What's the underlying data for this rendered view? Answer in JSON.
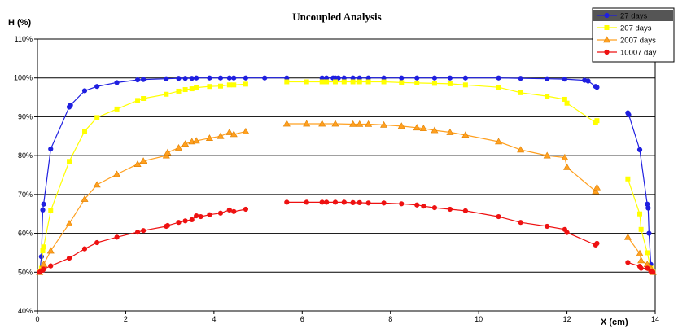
{
  "chart_data": {
    "type": "line",
    "title": "Uncoupled Analysis",
    "ylabel": "H (%)",
    "xlabel": "X (cm)",
    "xlim": [
      0,
      14
    ],
    "ylim": [
      40,
      110
    ],
    "x_ticks": [
      0,
      2,
      4,
      6,
      8,
      10,
      12,
      14
    ],
    "y_ticks": [
      40,
      50,
      60,
      70,
      80,
      90,
      100,
      110
    ],
    "y_tick_labels": [
      "40%",
      "50%",
      "60%",
      "70%",
      "80%",
      "90%",
      "100%",
      "110%"
    ],
    "grid": "horizontal",
    "legend_position": "top-right",
    "series": [
      {
        "name": "27 days",
        "color": "#1f1fe0",
        "marker": "circle",
        "segments": [
          [
            [
              0.05,
              50
            ],
            [
              0.09,
              54
            ],
            [
              0.12,
              66
            ],
            [
              0.14,
              67.5
            ],
            [
              0.3,
              81.7
            ],
            [
              0.72,
              92.5
            ],
            [
              0.75,
              93
            ],
            [
              1.07,
              96.7
            ],
            [
              1.35,
              97.8
            ],
            [
              1.8,
              98.8
            ],
            [
              2.27,
              99.5
            ],
            [
              2.4,
              99.6
            ],
            [
              2.92,
              99.8
            ],
            [
              3.2,
              99.9
            ],
            [
              3.35,
              99.9
            ],
            [
              3.5,
              99.9
            ],
            [
              3.6,
              100
            ],
            [
              3.9,
              100
            ],
            [
              4.15,
              100
            ],
            [
              4.35,
              100
            ],
            [
              4.45,
              100
            ],
            [
              4.72,
              100
            ],
            [
              5.15,
              100
            ],
            [
              5.65,
              100
            ]
          ],
          [
            [
              6.45,
              100
            ],
            [
              6.55,
              100
            ],
            [
              6.7,
              100
            ],
            [
              6.75,
              100
            ],
            [
              6.82,
              100
            ],
            [
              6.95,
              100
            ],
            [
              7.15,
              100
            ],
            [
              7.3,
              100
            ],
            [
              7.5,
              100
            ],
            [
              7.85,
              100
            ],
            [
              8.25,
              100
            ],
            [
              8.6,
              100
            ],
            [
              9.0,
              100
            ],
            [
              9.35,
              100
            ],
            [
              9.7,
              100
            ],
            [
              10.45,
              100
            ],
            [
              10.95,
              99.9
            ],
            [
              11.55,
              99.8
            ],
            [
              11.95,
              99.7
            ],
            [
              12.4,
              99.4
            ],
            [
              12.48,
              99.2
            ],
            [
              12.65,
              97.8
            ],
            [
              12.68,
              97.6
            ]
          ],
          [
            [
              13.38,
              91
            ],
            [
              13.4,
              90.5
            ],
            [
              13.65,
              81.5
            ],
            [
              13.82,
              67.5
            ],
            [
              13.84,
              66.5
            ],
            [
              13.86,
              60
            ],
            [
              13.9,
              52
            ],
            [
              13.95,
              50
            ]
          ]
        ]
      },
      {
        "name": "207 days",
        "color": "#ffff00",
        "marker": "square",
        "segments": [
          [
            [
              0.05,
              50
            ],
            [
              0.09,
              51
            ],
            [
              0.12,
              55.5
            ],
            [
              0.14,
              56.5
            ],
            [
              0.3,
              65.8
            ],
            [
              0.72,
              78.5
            ],
            [
              1.07,
              86.3
            ],
            [
              1.35,
              89.8
            ],
            [
              1.8,
              92
            ],
            [
              2.27,
              94.2
            ],
            [
              2.4,
              94.7
            ],
            [
              2.92,
              95.8
            ],
            [
              3.2,
              96.6
            ],
            [
              3.35,
              97
            ],
            [
              3.5,
              97.2
            ],
            [
              3.6,
              97.5
            ],
            [
              3.9,
              97.8
            ],
            [
              4.15,
              97.9
            ],
            [
              4.35,
              98.2
            ],
            [
              4.45,
              98.2
            ],
            [
              4.72,
              98.4
            ]
          ],
          [
            [
              5.65,
              99
            ],
            [
              6.1,
              99
            ],
            [
              6.45,
              99
            ],
            [
              6.55,
              99
            ],
            [
              6.75,
              99
            ],
            [
              6.95,
              99
            ],
            [
              7.15,
              99
            ],
            [
              7.3,
              99
            ],
            [
              7.5,
              99
            ],
            [
              7.85,
              99
            ],
            [
              8.25,
              98.8
            ],
            [
              8.6,
              98.7
            ],
            [
              9.0,
              98.6
            ],
            [
              9.35,
              98.5
            ],
            [
              9.7,
              98.2
            ],
            [
              10.45,
              97.6
            ],
            [
              10.95,
              96.2
            ],
            [
              11.55,
              95.3
            ],
            [
              11.95,
              94.5
            ],
            [
              12.0,
              93.5
            ],
            [
              12.65,
              88.5
            ],
            [
              12.68,
              89
            ]
          ],
          [
            [
              13.38,
              74
            ],
            [
              13.65,
              65
            ],
            [
              13.68,
              61
            ],
            [
              13.82,
              55
            ],
            [
              13.9,
              51
            ],
            [
              13.95,
              50
            ]
          ]
        ]
      },
      {
        "name": "2007 days",
        "color": "#ffa020",
        "marker": "triangle",
        "segments": [
          [
            [
              0.05,
              50
            ],
            [
              0.12,
              51.2
            ],
            [
              0.14,
              52
            ],
            [
              0.3,
              55.5
            ],
            [
              0.72,
              62.5
            ],
            [
              1.07,
              68.8
            ],
            [
              1.35,
              72.5
            ],
            [
              1.8,
              75.2
            ],
            [
              2.27,
              77.8
            ],
            [
              2.4,
              78.6
            ],
            [
              2.92,
              80
            ],
            [
              2.95,
              80.8
            ],
            [
              3.2,
              82
            ],
            [
              3.35,
              83
            ],
            [
              3.5,
              83.6
            ],
            [
              3.6,
              83.8
            ],
            [
              3.9,
              84.5
            ],
            [
              4.15,
              85
            ],
            [
              4.35,
              86
            ],
            [
              4.45,
              85.5
            ],
            [
              4.72,
              86.2
            ]
          ],
          [
            [
              5.65,
              88.2
            ],
            [
              6.1,
              88.2
            ],
            [
              6.45,
              88.2
            ],
            [
              6.75,
              88.2
            ],
            [
              7.15,
              88.1
            ],
            [
              7.3,
              88.1
            ],
            [
              7.5,
              88.1
            ],
            [
              7.85,
              87.9
            ],
            [
              8.25,
              87.6
            ],
            [
              8.6,
              87.2
            ],
            [
              8.75,
              87
            ],
            [
              9.0,
              86.5
            ],
            [
              9.35,
              86
            ],
            [
              9.7,
              85.3
            ],
            [
              10.45,
              83.6
            ],
            [
              10.95,
              81.5
            ],
            [
              11.55,
              80
            ],
            [
              11.95,
              79.5
            ],
            [
              12.0,
              77
            ],
            [
              12.65,
              70.8
            ],
            [
              12.68,
              71.8
            ]
          ],
          [
            [
              13.38,
              59
            ],
            [
              13.65,
              54.8
            ],
            [
              13.68,
              53
            ],
            [
              13.82,
              52
            ],
            [
              13.9,
              51
            ],
            [
              13.95,
              50
            ]
          ]
        ]
      },
      {
        "name": "10007 day",
        "color": "#ee1111",
        "marker": "circle",
        "segments": [
          [
            [
              0.05,
              50
            ],
            [
              0.12,
              50.5
            ],
            [
              0.14,
              50.8
            ],
            [
              0.3,
              51.6
            ],
            [
              0.72,
              53.6
            ],
            [
              1.07,
              56
            ],
            [
              1.35,
              57.6
            ],
            [
              1.8,
              59
            ],
            [
              2.27,
              60.3
            ],
            [
              2.4,
              60.7
            ],
            [
              2.92,
              61.8
            ],
            [
              2.95,
              62
            ],
            [
              3.2,
              62.8
            ],
            [
              3.35,
              63.2
            ],
            [
              3.5,
              63.5
            ],
            [
              3.6,
              64.5
            ],
            [
              3.7,
              64.3
            ],
            [
              3.9,
              64.8
            ],
            [
              4.15,
              65.2
            ],
            [
              4.35,
              66
            ],
            [
              4.45,
              65.6
            ],
            [
              4.72,
              66.2
            ]
          ],
          [
            [
              5.65,
              68
            ],
            [
              6.1,
              68
            ],
            [
              6.45,
              68
            ],
            [
              6.55,
              68
            ],
            [
              6.75,
              68
            ],
            [
              6.95,
              68
            ],
            [
              7.15,
              67.9
            ],
            [
              7.3,
              67.9
            ],
            [
              7.5,
              67.8
            ],
            [
              7.85,
              67.8
            ],
            [
              8.25,
              67.6
            ],
            [
              8.6,
              67.3
            ],
            [
              8.75,
              67
            ],
            [
              9.0,
              66.6
            ],
            [
              9.35,
              66.2
            ],
            [
              9.7,
              65.8
            ],
            [
              10.45,
              64.3
            ],
            [
              10.95,
              62.8
            ],
            [
              11.55,
              61.8
            ],
            [
              11.95,
              61
            ],
            [
              12.0,
              60.2
            ],
            [
              12.65,
              57
            ],
            [
              12.68,
              57.4
            ]
          ],
          [
            [
              13.38,
              52.5
            ],
            [
              13.65,
              51.5
            ],
            [
              13.68,
              51
            ],
            [
              13.82,
              51
            ],
            [
              13.9,
              50.2
            ],
            [
              13.95,
              50
            ]
          ]
        ]
      }
    ]
  }
}
